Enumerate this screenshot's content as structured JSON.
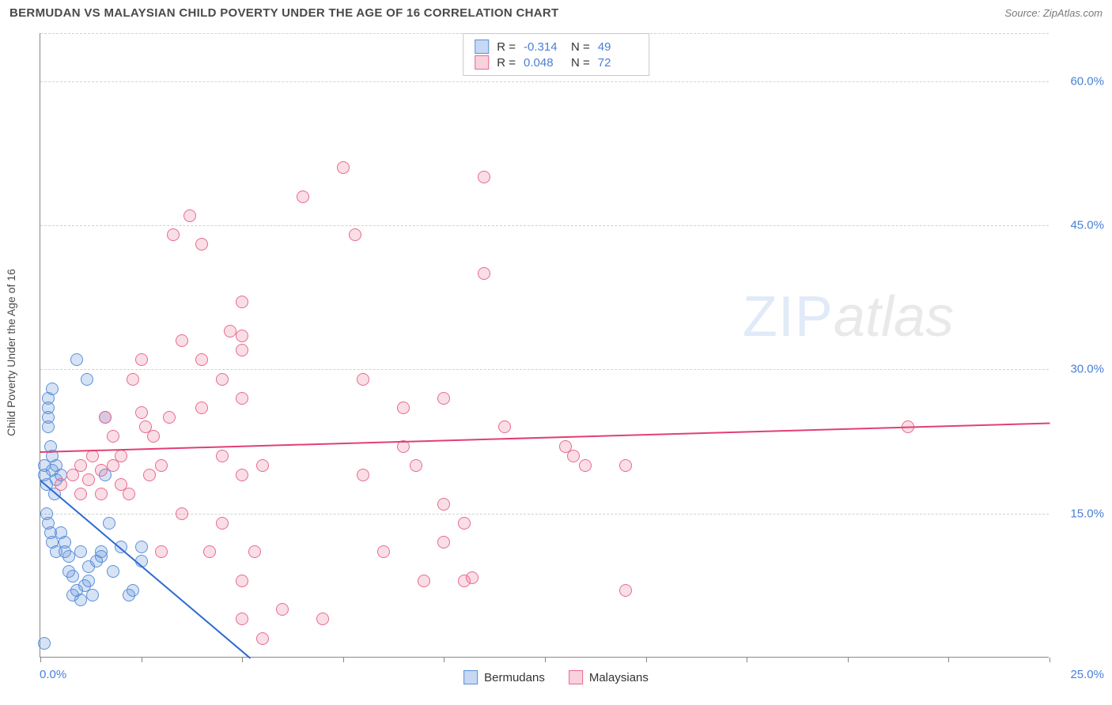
{
  "header": {
    "title": "BERMUDAN VS MALAYSIAN CHILD POVERTY UNDER THE AGE OF 16 CORRELATION CHART",
    "source": "Source: ZipAtlas.com"
  },
  "watermark": {
    "part1": "ZIP",
    "part2": "atlas"
  },
  "chart": {
    "type": "scatter",
    "y_axis_label": "Child Poverty Under the Age of 16",
    "background_color": "#ffffff",
    "grid_color": "#d0d0d0",
    "axis_color": "#888888",
    "label_color": "#4a7fd6",
    "xlim": [
      0,
      25
    ],
    "ylim": [
      0,
      65
    ],
    "x_min_label": "0.0%",
    "x_max_label": "25.0%",
    "x_ticks": [
      0,
      2.5,
      5,
      7.5,
      10,
      12.5,
      15,
      17.5,
      20,
      22.5,
      25
    ],
    "y_gridlines": [
      15,
      30,
      45,
      60
    ],
    "y_tick_labels": [
      "15.0%",
      "30.0%",
      "45.0%",
      "60.0%"
    ],
    "marker_radius": 8,
    "marker_fill_opacity": 0.25,
    "marker_stroke_width": 1.5,
    "series": [
      {
        "name": "Bermudans",
        "color": "#5b8fd9",
        "fill": "rgba(91,143,217,0.25)",
        "R": "-0.314",
        "N": "49",
        "trend": {
          "x1": 0,
          "y1": 18.5,
          "x2": 5.2,
          "y2": 0,
          "color": "#2d6bd1",
          "width": 2
        },
        "points": [
          [
            0.1,
            19
          ],
          [
            0.1,
            20
          ],
          [
            0.15,
            18
          ],
          [
            0.2,
            27
          ],
          [
            0.2,
            26
          ],
          [
            0.2,
            25
          ],
          [
            0.2,
            24
          ],
          [
            0.25,
            22
          ],
          [
            0.3,
            21
          ],
          [
            0.3,
            28
          ],
          [
            0.3,
            19.5
          ],
          [
            0.35,
            17
          ],
          [
            0.4,
            20
          ],
          [
            0.4,
            18.5
          ],
          [
            0.5,
            19
          ],
          [
            0.5,
            13
          ],
          [
            0.6,
            12
          ],
          [
            0.6,
            11
          ],
          [
            0.7,
            10.5
          ],
          [
            0.7,
            9
          ],
          [
            0.8,
            8.5
          ],
          [
            0.8,
            6.5
          ],
          [
            0.9,
            7
          ],
          [
            1.0,
            6
          ],
          [
            1.0,
            11
          ],
          [
            1.1,
            7.5
          ],
          [
            1.2,
            9.5
          ],
          [
            1.2,
            8
          ],
          [
            1.3,
            6.5
          ],
          [
            1.4,
            10
          ],
          [
            1.5,
            11
          ],
          [
            1.5,
            10.5
          ],
          [
            1.6,
            19
          ],
          [
            1.7,
            14
          ],
          [
            1.8,
            9
          ],
          [
            2.0,
            11.5
          ],
          [
            2.2,
            6.5
          ],
          [
            2.3,
            7
          ],
          [
            2.5,
            10
          ],
          [
            2.5,
            11.5
          ],
          [
            0.15,
            15
          ],
          [
            0.2,
            14
          ],
          [
            0.25,
            13
          ],
          [
            0.3,
            12
          ],
          [
            0.4,
            11
          ],
          [
            0.1,
            1.5
          ],
          [
            0.9,
            31
          ],
          [
            1.15,
            29
          ],
          [
            1.6,
            25
          ]
        ]
      },
      {
        "name": "Malaysians",
        "color": "#e86a8f",
        "fill": "rgba(232,106,143,0.22)",
        "R": "0.048",
        "N": "72",
        "trend": {
          "x1": 0,
          "y1": 21.5,
          "x2": 25,
          "y2": 24.5,
          "color": "#e23f73",
          "width": 2
        },
        "points": [
          [
            0.5,
            18
          ],
          [
            0.8,
            19
          ],
          [
            1.0,
            20
          ],
          [
            1.0,
            17
          ],
          [
            1.2,
            18.5
          ],
          [
            1.3,
            21
          ],
          [
            1.5,
            19.5
          ],
          [
            1.5,
            17
          ],
          [
            1.6,
            25
          ],
          [
            1.8,
            20
          ],
          [
            1.8,
            23
          ],
          [
            2.0,
            21
          ],
          [
            2.0,
            18
          ],
          [
            2.2,
            17
          ],
          [
            2.3,
            29
          ],
          [
            2.5,
            31
          ],
          [
            2.5,
            25.5
          ],
          [
            2.6,
            24
          ],
          [
            2.7,
            19
          ],
          [
            2.8,
            23
          ],
          [
            3.0,
            20
          ],
          [
            3.0,
            11
          ],
          [
            3.2,
            25
          ],
          [
            3.3,
            44
          ],
          [
            3.5,
            33
          ],
          [
            3.5,
            15
          ],
          [
            3.7,
            46
          ],
          [
            4.0,
            43
          ],
          [
            4.0,
            31
          ],
          [
            4.0,
            26
          ],
          [
            4.2,
            11
          ],
          [
            4.5,
            29
          ],
          [
            4.5,
            21
          ],
          [
            4.5,
            14
          ],
          [
            4.7,
            34
          ],
          [
            5.0,
            37
          ],
          [
            5.0,
            33.5
          ],
          [
            5.0,
            32
          ],
          [
            5.0,
            27
          ],
          [
            5.0,
            19
          ],
          [
            5.0,
            8
          ],
          [
            5.0,
            4
          ],
          [
            5.3,
            11
          ],
          [
            5.5,
            20
          ],
          [
            5.5,
            2
          ],
          [
            6.0,
            5
          ],
          [
            6.5,
            48
          ],
          [
            7.0,
            4
          ],
          [
            7.5,
            51
          ],
          [
            7.8,
            44
          ],
          [
            8.0,
            29
          ],
          [
            8.0,
            19
          ],
          [
            8.5,
            11
          ],
          [
            9.0,
            26
          ],
          [
            9.0,
            22
          ],
          [
            9.3,
            20
          ],
          [
            9.5,
            8
          ],
          [
            10.0,
            27
          ],
          [
            10.0,
            16
          ],
          [
            10.0,
            12
          ],
          [
            10.5,
            14
          ],
          [
            10.5,
            8
          ],
          [
            10.7,
            8.3
          ],
          [
            11.0,
            50
          ],
          [
            11.0,
            40
          ],
          [
            11.5,
            24
          ],
          [
            13.0,
            22
          ],
          [
            13.2,
            21
          ],
          [
            13.5,
            20
          ],
          [
            14.5,
            7
          ],
          [
            14.5,
            20
          ],
          [
            21.5,
            24
          ]
        ]
      }
    ]
  },
  "legend_stats": {
    "rows": [
      {
        "fill": "rgba(91,143,217,0.35)",
        "border": "#5b8fd9",
        "R_label": "R =",
        "R": "-0.314",
        "N_label": "N =",
        "N": "49"
      },
      {
        "fill": "rgba(232,106,143,0.3)",
        "border": "#e86a8f",
        "R_label": "R =",
        "R": "0.048",
        "N_label": "N =",
        "N": "72"
      }
    ]
  },
  "bottom_legend": {
    "items": [
      {
        "fill": "rgba(91,143,217,0.35)",
        "border": "#5b8fd9",
        "label": "Bermudans"
      },
      {
        "fill": "rgba(232,106,143,0.3)",
        "border": "#e86a8f",
        "label": "Malaysians"
      }
    ]
  }
}
